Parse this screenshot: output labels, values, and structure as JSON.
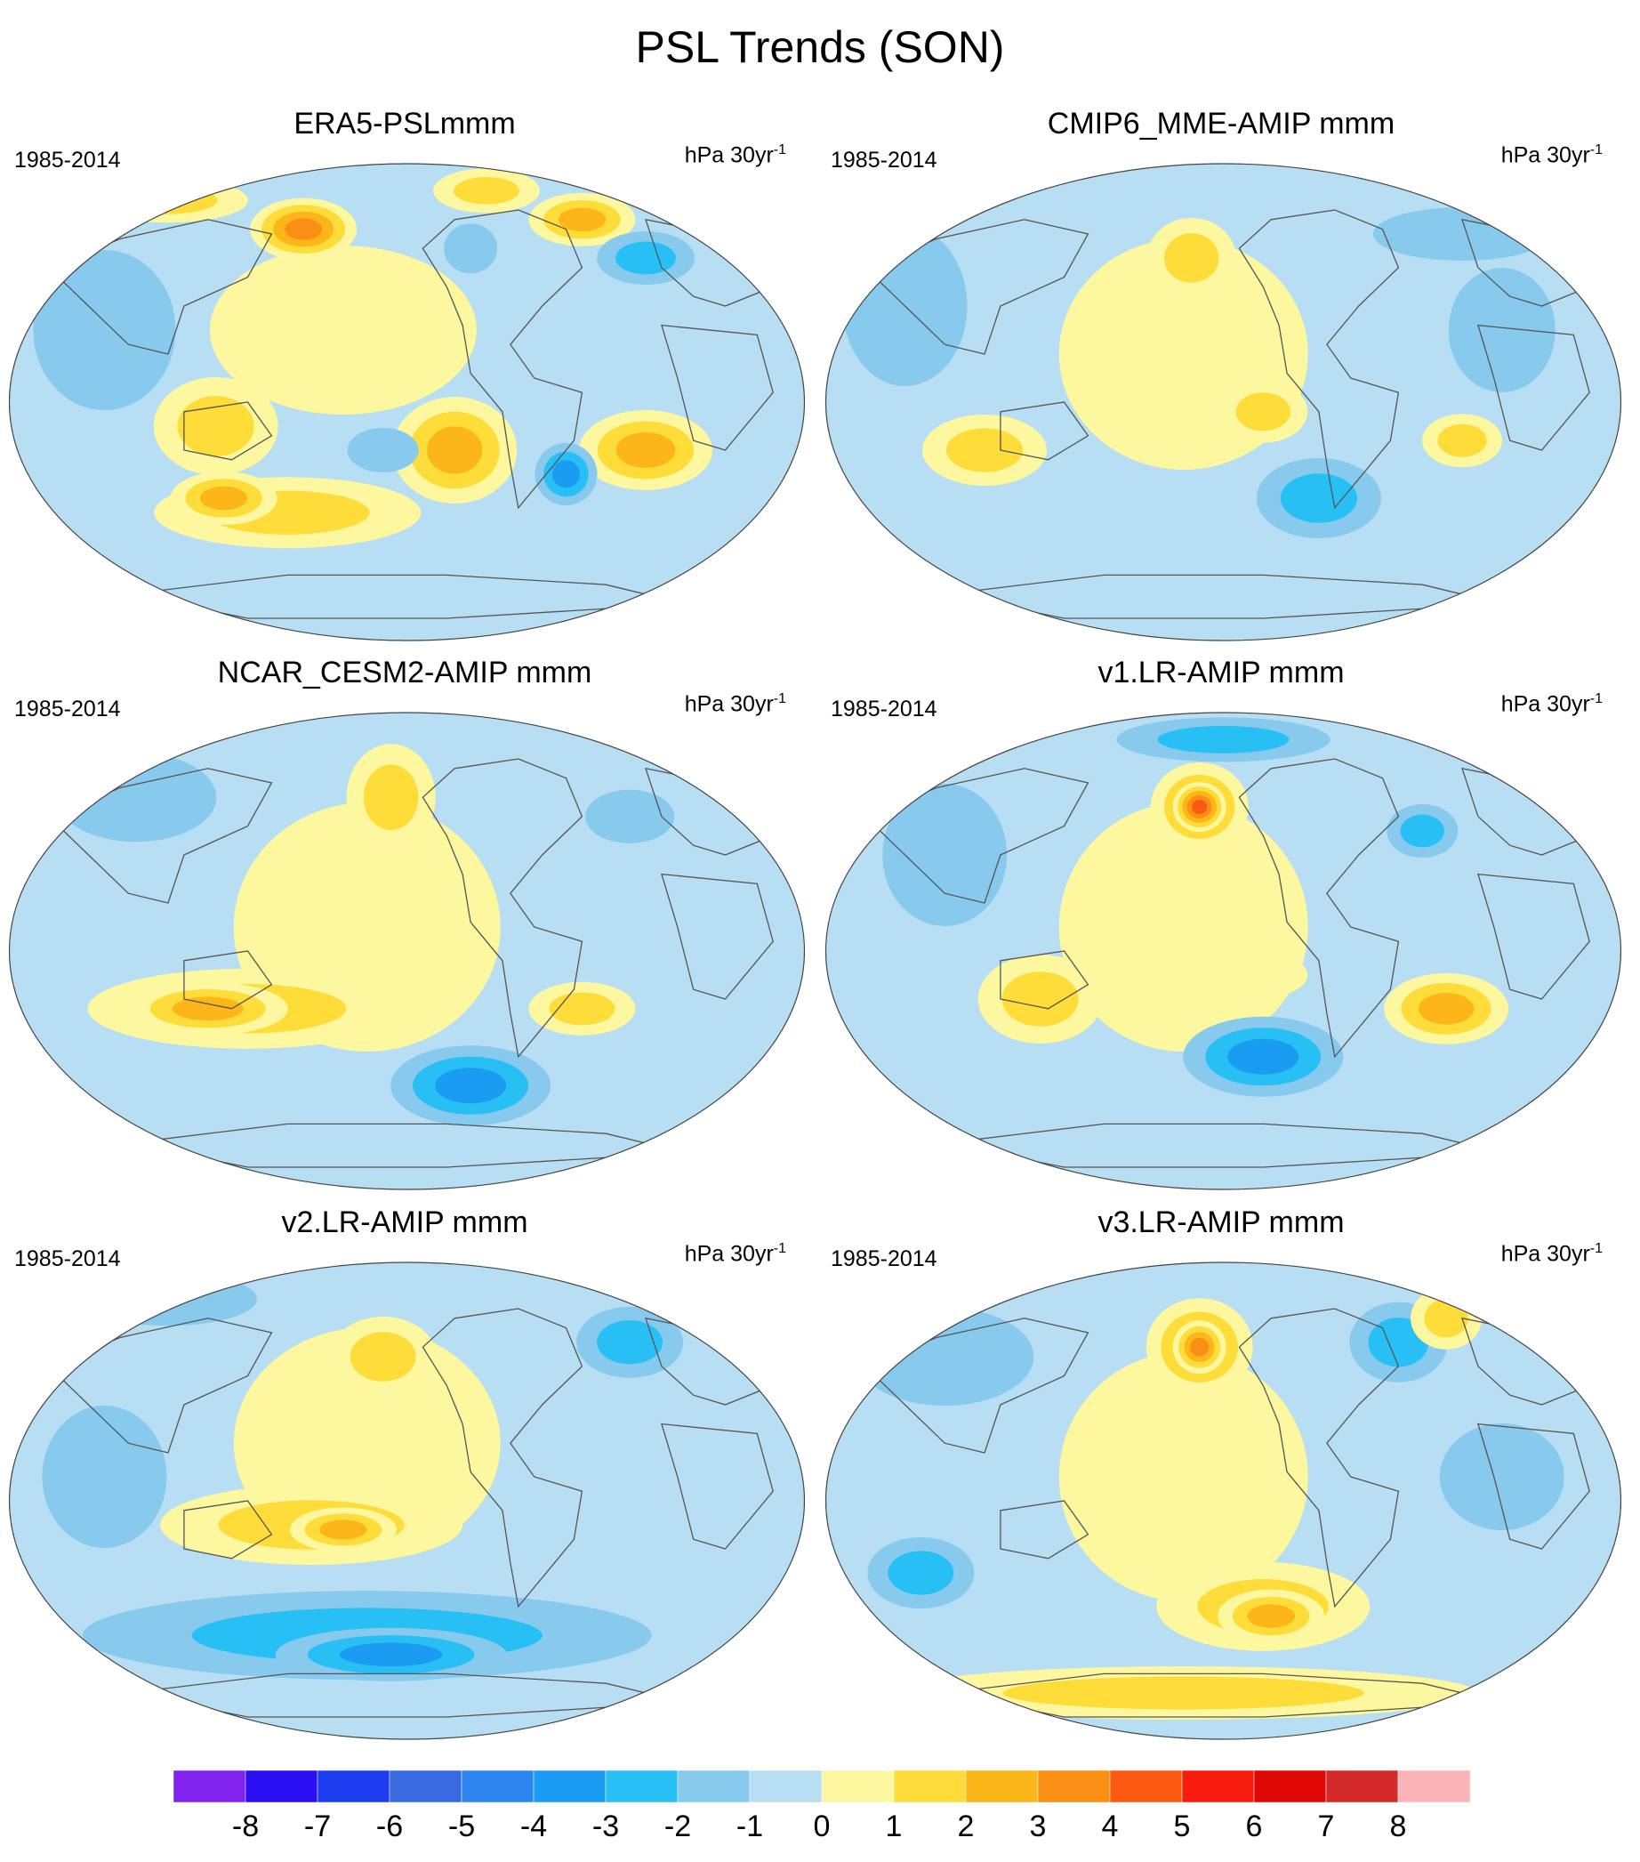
{
  "figure": {
    "title": "PSL Trends (SON)"
  },
  "panels": [
    {
      "title": "ERA5-PSLmmm",
      "period": "1985-2014",
      "units": "hPa 30yr",
      "units_exp": "-1"
    },
    {
      "title": "CMIP6_MME-AMIP  mmm",
      "period": "1985-2014",
      "units": "hPa 30yr",
      "units_exp": "-1"
    },
    {
      "title": "NCAR_CESM2-AMIP  mmm",
      "period": "1985-2014",
      "units": "hPa 30yr",
      "units_exp": "-1"
    },
    {
      "title": "v1.LR-AMIP  mmm",
      "period": "1985-2014",
      "units": "hPa 30yr",
      "units_exp": "-1"
    },
    {
      "title": "v2.LR-AMIP  mmm",
      "period": "1985-2014",
      "units": "hPa 30yr",
      "units_exp": "-1"
    },
    {
      "title": "v3.LR-AMIP  mmm",
      "period": "1985-2014",
      "units": "hPa 30yr",
      "units_exp": "-1"
    }
  ],
  "colorbar": {
    "labels": [
      "-8",
      "-7",
      "-6",
      "-5",
      "-4",
      "-3",
      "-2",
      "-1",
      "0",
      "1",
      "2",
      "3",
      "4",
      "5",
      "6",
      "7",
      "8"
    ],
    "colors": [
      "#8122ee",
      "#2a0ff2",
      "#1c3ef0",
      "#3a6ae0",
      "#2c86ee",
      "#1a9cf2",
      "#28bff5",
      "#88c9ee",
      "#b7def2",
      "#fdf7a0",
      "#fedc3a",
      "#fcb619",
      "#fb8f16",
      "#fb5a10",
      "#f81d0e",
      "#dd0705",
      "#d52a2a",
      "#fbb4b8"
    ],
    "colors_doc": "18 colour boxes, from below -8 to above 8"
  },
  "map_palette": {
    "background": "#b7def2",
    "coast": "#555555"
  }
}
